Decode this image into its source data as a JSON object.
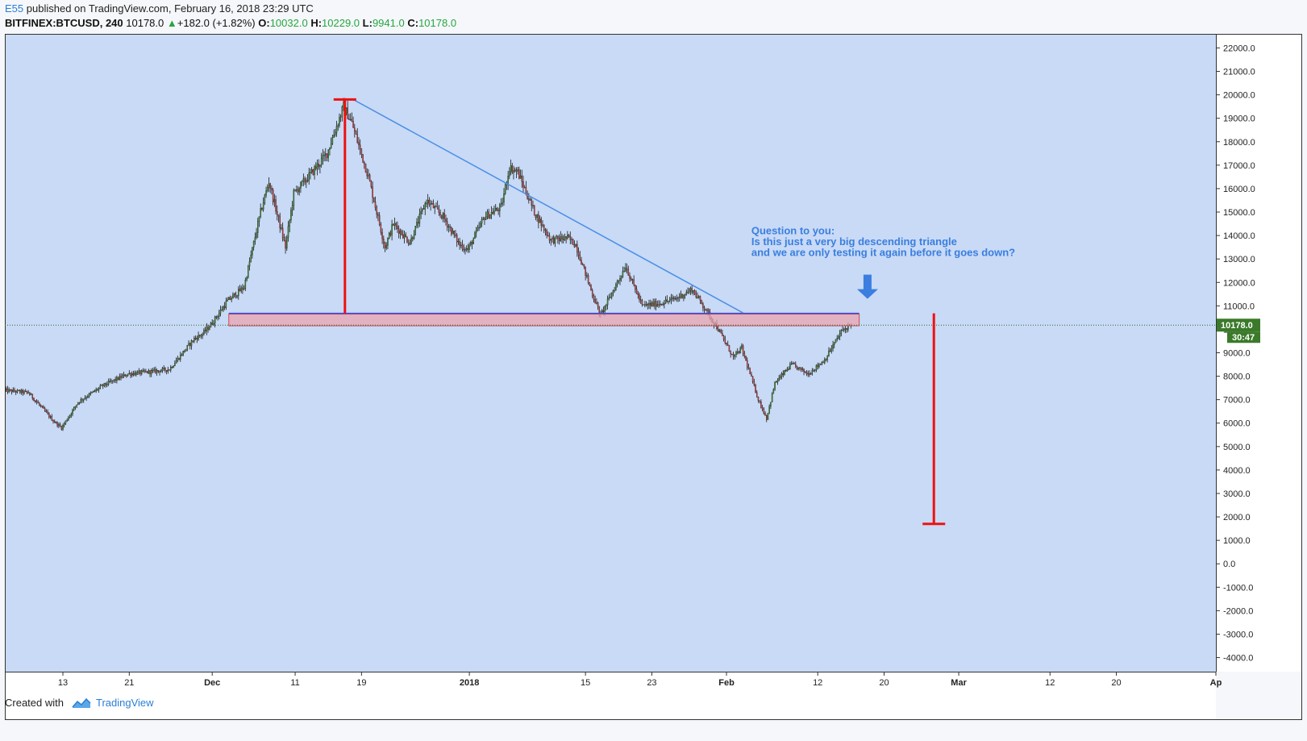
{
  "header": {
    "author": "E55",
    "published_text": "published on TradingView.com, February 16, 2018 23:29 UTC"
  },
  "symbol_bar": {
    "symbol": "BITFINEX:BTCUSD, 240",
    "last": "10178.0",
    "change_arrow": "▲",
    "change": "+182.0 (+1.82%)",
    "open_label": "O:",
    "open": "10032.0",
    "high_label": "H:",
    "high": "10229.0",
    "low_label": "L:",
    "low": "9941.0",
    "close_label": "C:",
    "close": "10178.0"
  },
  "footer": {
    "created_with": "Created with",
    "brand": "TradingView"
  },
  "colors": {
    "background": "#c8daf5",
    "up": "#3a8a2a",
    "down": "#d03a3a",
    "trendline": "#4a8ee8",
    "zone_fill": "#e8a4b0",
    "zone_stroke": "#d04a5a",
    "annotation": "#3a7ee0",
    "measure": "#ee1111",
    "price_tag": "#3a7a2a"
  },
  "chart_data": {
    "type": "candlestick",
    "symbol": "BITFINEX:BTCUSD",
    "interval": "240",
    "y_axis_ticks": [
      "22000.0",
      "21000.0",
      "20000.0",
      "19000.0",
      "18000.0",
      "17000.0",
      "16000.0",
      "15000.0",
      "14000.0",
      "13000.0",
      "12000.0",
      "11000.0",
      "10000.0",
      "9000.0",
      "8000.0",
      "7000.0",
      "6000.0",
      "5000.0",
      "4000.0",
      "3000.0",
      "2000.0",
      "1000.0",
      "0.0",
      "-1000.0",
      "-2000.0",
      "-3000.0",
      "-4000.0"
    ],
    "ylim": [
      -4600,
      22600
    ],
    "x_axis_labels": [
      {
        "label": "13",
        "date": "2017-11-13"
      },
      {
        "label": "21",
        "date": "2017-11-21"
      },
      {
        "label": "Dec",
        "date": "2017-12-01"
      },
      {
        "label": "11",
        "date": "2017-12-11"
      },
      {
        "label": "19",
        "date": "2017-12-19"
      },
      {
        "label": "2018",
        "date": "2018-01-01"
      },
      {
        "label": "15",
        "date": "2018-01-15"
      },
      {
        "label": "23",
        "date": "2018-01-23"
      },
      {
        "label": "Feb",
        "date": "2018-02-01"
      },
      {
        "label": "12",
        "date": "2018-02-12"
      },
      {
        "label": "20",
        "date": "2018-02-20"
      },
      {
        "label": "Mar",
        "date": "2018-03-01"
      },
      {
        "label": "12",
        "date": "2018-03-12"
      },
      {
        "label": "20",
        "date": "2018-03-20"
      },
      {
        "label": "Ap",
        "date": "2018-04-01"
      }
    ],
    "xlim": [
      "2017-11-06",
      "2018-04-01"
    ],
    "price_path": [
      [
        "2017-11-06",
        7400
      ],
      [
        "2017-11-09",
        7300
      ],
      [
        "2017-11-12",
        6100
      ],
      [
        "2017-11-13",
        5800
      ],
      [
        "2017-11-15",
        6900
      ],
      [
        "2017-11-18",
        7600
      ],
      [
        "2017-11-21",
        8100
      ],
      [
        "2017-11-24",
        8200
      ],
      [
        "2017-11-26",
        8300
      ],
      [
        "2017-11-29",
        9600
      ],
      [
        "2017-11-30",
        9800
      ],
      [
        "2017-12-01",
        10200
      ],
      [
        "2017-12-03",
        11200
      ],
      [
        "2017-12-05",
        11800
      ],
      [
        "2017-12-07",
        15000
      ],
      [
        "2017-12-08",
        16300
      ],
      [
        "2017-12-10",
        13500
      ],
      [
        "2017-12-11",
        15800
      ],
      [
        "2017-12-13",
        16600
      ],
      [
        "2017-12-15",
        17500
      ],
      [
        "2017-12-17",
        19500
      ],
      [
        "2017-12-18",
        18800
      ],
      [
        "2017-12-20",
        16500
      ],
      [
        "2017-12-22",
        13500
      ],
      [
        "2017-12-23",
        14500
      ],
      [
        "2017-12-25",
        13700
      ],
      [
        "2017-12-27",
        15500
      ],
      [
        "2017-12-29",
        14800
      ],
      [
        "2017-12-31",
        13600
      ],
      [
        "2018-01-01",
        13400
      ],
      [
        "2018-01-03",
        14800
      ],
      [
        "2018-01-05",
        15200
      ],
      [
        "2018-01-06",
        16900
      ],
      [
        "2018-01-07",
        16700
      ],
      [
        "2018-01-09",
        15000
      ],
      [
        "2018-01-11",
        13800
      ],
      [
        "2018-01-13",
        13900
      ],
      [
        "2018-01-14",
        13600
      ],
      [
        "2018-01-16",
        11500
      ],
      [
        "2018-01-17",
        10600
      ],
      [
        "2018-01-18",
        11300
      ],
      [
        "2018-01-20",
        12700
      ],
      [
        "2018-01-22",
        11000
      ],
      [
        "2018-01-24",
        11100
      ],
      [
        "2018-01-26",
        11300
      ],
      [
        "2018-01-28",
        11700
      ],
      [
        "2018-01-29",
        11200
      ],
      [
        "2018-01-31",
        10100
      ],
      [
        "2018-02-02",
        8800
      ],
      [
        "2018-02-03",
        9200
      ],
      [
        "2018-02-05",
        7000
      ],
      [
        "2018-02-06",
        6200
      ],
      [
        "2018-02-07",
        7700
      ],
      [
        "2018-02-09",
        8500
      ],
      [
        "2018-02-11",
        8100
      ],
      [
        "2018-02-13",
        8700
      ],
      [
        "2018-02-15",
        9900
      ],
      [
        "2018-02-16",
        10178
      ]
    ],
    "last_price": 10178.0,
    "countdown": "30:47",
    "drawings": {
      "descending_trendline": {
        "from": [
          "2017-12-18",
          19800
        ],
        "to": [
          "2018-02-03",
          10700
        ]
      },
      "support_zone": {
        "from": "2017-12-03",
        "to": "2018-02-17",
        "low": 10150,
        "high": 10650
      },
      "support_line": {
        "from": "2017-12-03",
        "to": "2018-02-17",
        "price": 10680
      },
      "pole_measure": {
        "date": "2017-12-17",
        "top": 19800,
        "bottom": 10680
      },
      "target_measure": {
        "date": "2018-02-26",
        "top": 10680,
        "bottom": 1700
      },
      "arrow": {
        "date": "2018-02-18",
        "price": 11300,
        "direction": "down"
      }
    },
    "annotation": [
      "Question to you:",
      "Is this just a very big descending triangle",
      "and we are only testing it again before it goes down?"
    ]
  }
}
